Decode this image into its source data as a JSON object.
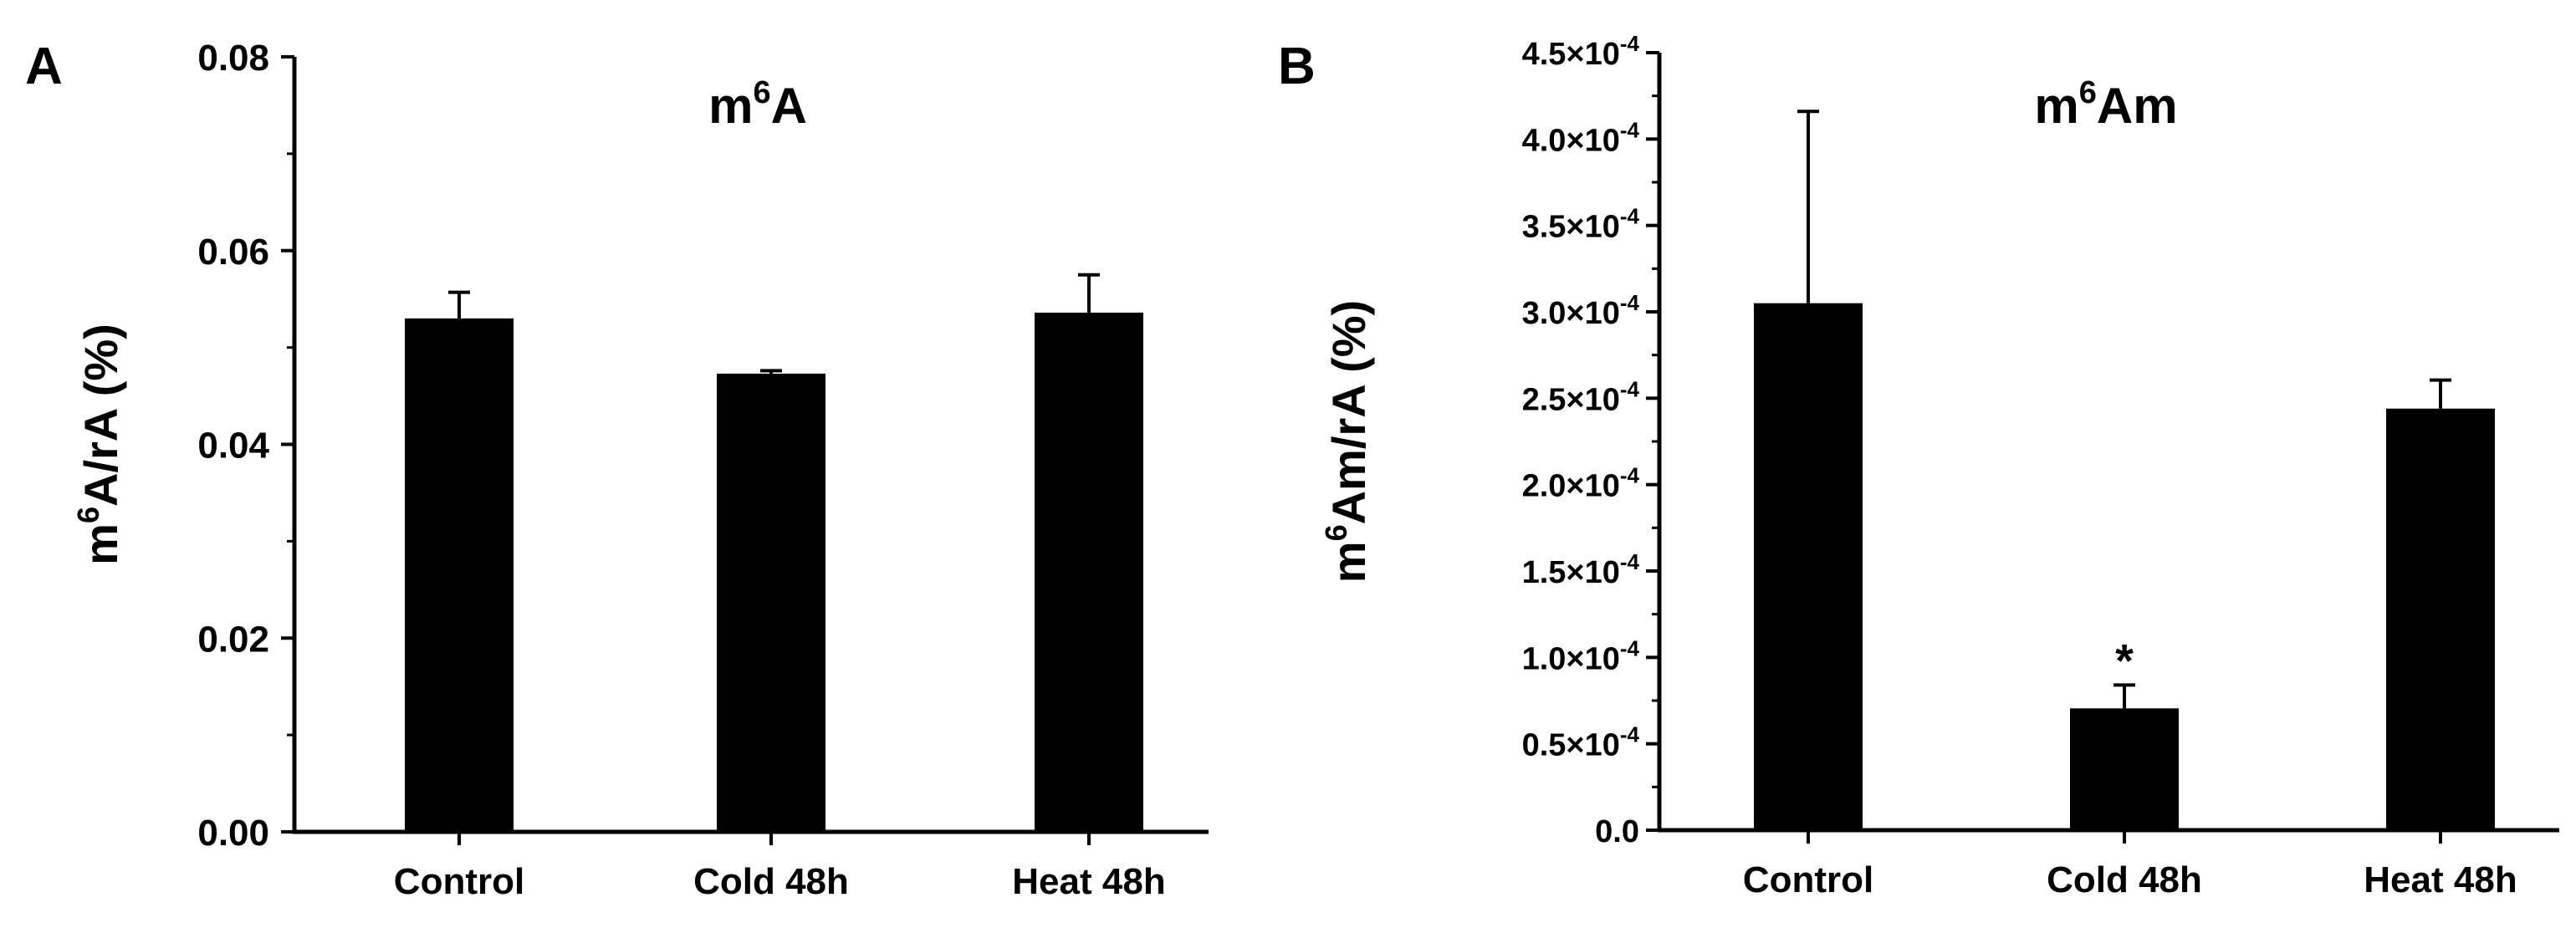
{
  "colors": {
    "bar": "#000000",
    "axis": "#000000",
    "background": "#ffffff"
  },
  "chart_data": [
    {
      "type": "bar",
      "panel": "A",
      "title": {
        "base": "m",
        "sup": "6",
        "rest": "A"
      },
      "ylabel": {
        "base": "m",
        "sup": "6",
        "rest": "A/rA (%)"
      },
      "xlabel": "",
      "categories": [
        "Control",
        "Cold 48h",
        "Heat 48h"
      ],
      "values": [
        0.053,
        0.0473,
        0.0536
      ],
      "errors": [
        0.0027,
        0.0003,
        0.0039
      ],
      "ylim": [
        0,
        0.08
      ],
      "y_ticks": [
        0.0,
        0.02,
        0.04,
        0.06,
        0.08
      ],
      "y_tick_labels": [
        "0.00",
        "0.02",
        "0.04",
        "0.06",
        "0.08"
      ],
      "annotations": [
        "",
        "",
        ""
      ]
    },
    {
      "type": "bar",
      "panel": "B",
      "title": {
        "base": "m",
        "sup": "6",
        "rest": "Am"
      },
      "ylabel": {
        "base": "m",
        "sup": "6",
        "rest": "Am/rA (%)"
      },
      "xlabel": "",
      "categories": [
        "Control",
        "Cold 48h",
        "Heat 48h"
      ],
      "values": [
        0.000305,
        7.05e-05,
        0.000244
      ],
      "errors": [
        0.000111,
        1.35e-05,
        1.65e-05
      ],
      "ylim": [
        0,
        0.00045
      ],
      "y_ticks": [
        0.0,
        5e-05,
        0.0001,
        0.00015,
        0.0002,
        0.00025,
        0.0003,
        0.00035,
        0.0004,
        0.00045
      ],
      "y_tick_labels": [
        {
          "plain": "0.0"
        },
        {
          "mant": "0.5×10",
          "exp": "-4"
        },
        {
          "mant": "1.0×10",
          "exp": "-4"
        },
        {
          "mant": "1.5×10",
          "exp": "-4"
        },
        {
          "mant": "2.0×10",
          "exp": "-4"
        },
        {
          "mant": "2.5×10",
          "exp": "-4"
        },
        {
          "mant": "3.0×10",
          "exp": "-4"
        },
        {
          "mant": "3.5×10",
          "exp": "-4"
        },
        {
          "mant": "4.0×10",
          "exp": "-4"
        },
        {
          "mant": "4.5×10",
          "exp": "-4"
        }
      ],
      "annotations": [
        "",
        "*",
        ""
      ]
    }
  ]
}
